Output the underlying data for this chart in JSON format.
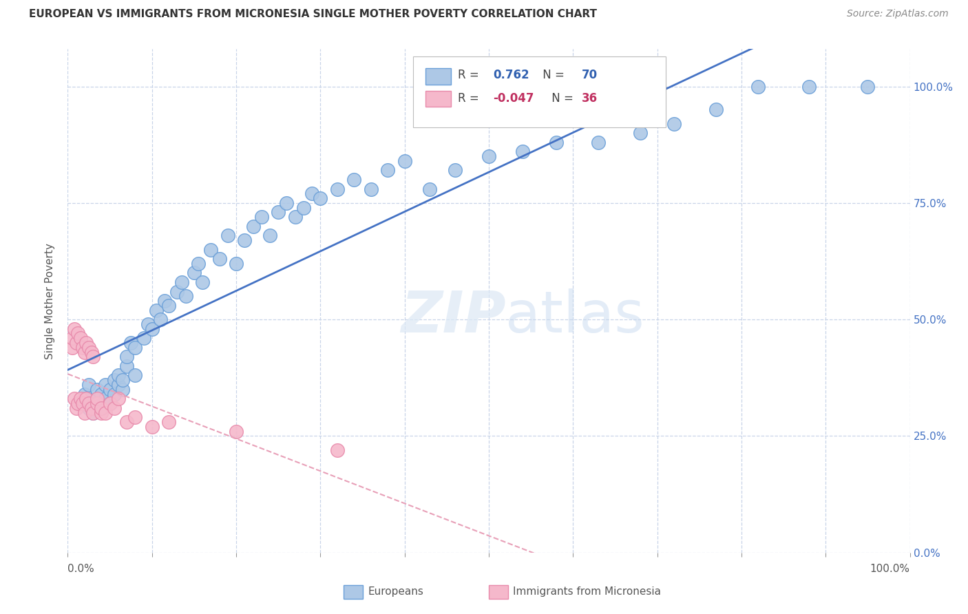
{
  "title": "EUROPEAN VS IMMIGRANTS FROM MICRONESIA SINGLE MOTHER POVERTY CORRELATION CHART",
  "source": "Source: ZipAtlas.com",
  "ylabel": "Single Mother Poverty",
  "watermark": "ZIPatlas",
  "blue_R": 0.762,
  "blue_N": 70,
  "pink_R": -0.047,
  "pink_N": 36,
  "blue_color": "#adc8e6",
  "pink_color": "#f5b8cb",
  "blue_edge_color": "#6a9fd8",
  "pink_edge_color": "#e88aab",
  "blue_line_color": "#4472c4",
  "pink_line_color": "#e8a0b8",
  "background_color": "#ffffff",
  "grid_color": "#c8d4e8",
  "blue_x": [
    1.5,
    2.0,
    2.0,
    2.5,
    2.5,
    3.0,
    3.0,
    3.5,
    3.5,
    4.0,
    4.0,
    4.5,
    4.5,
    5.0,
    5.0,
    5.5,
    5.5,
    6.0,
    6.0,
    6.5,
    6.5,
    7.0,
    7.0,
    7.5,
    8.0,
    8.0,
    9.0,
    9.5,
    10.0,
    10.5,
    11.0,
    11.5,
    12.0,
    13.0,
    13.5,
    14.0,
    15.0,
    15.5,
    16.0,
    17.0,
    18.0,
    19.0,
    20.0,
    21.0,
    22.0,
    23.0,
    24.0,
    25.0,
    26.0,
    27.0,
    28.0,
    29.0,
    30.0,
    32.0,
    34.0,
    36.0,
    38.0,
    40.0,
    43.0,
    46.0,
    50.0,
    54.0,
    58.0,
    63.0,
    68.0,
    72.0,
    77.0,
    82.0,
    88.0,
    95.0
  ],
  "blue_y": [
    32.0,
    33.0,
    34.0,
    31.0,
    36.0,
    30.0,
    32.0,
    33.0,
    35.0,
    31.0,
    34.0,
    33.0,
    36.0,
    32.0,
    35.0,
    34.0,
    37.0,
    36.0,
    38.0,
    35.0,
    37.0,
    40.0,
    42.0,
    45.0,
    38.0,
    44.0,
    46.0,
    49.0,
    48.0,
    52.0,
    50.0,
    54.0,
    53.0,
    56.0,
    58.0,
    55.0,
    60.0,
    62.0,
    58.0,
    65.0,
    63.0,
    68.0,
    62.0,
    67.0,
    70.0,
    72.0,
    68.0,
    73.0,
    75.0,
    72.0,
    74.0,
    77.0,
    76.0,
    78.0,
    80.0,
    78.0,
    82.0,
    84.0,
    78.0,
    82.0,
    85.0,
    86.0,
    88.0,
    88.0,
    90.0,
    92.0,
    95.0,
    100.0,
    100.0,
    100.0
  ],
  "pink_x": [
    0.5,
    0.5,
    0.8,
    0.8,
    1.0,
    1.0,
    1.2,
    1.2,
    1.5,
    1.5,
    1.8,
    1.8,
    2.0,
    2.0,
    2.2,
    2.2,
    2.5,
    2.5,
    2.8,
    2.8,
    3.0,
    3.0,
    3.5,
    3.5,
    4.0,
    4.0,
    4.5,
    5.0,
    5.5,
    6.0,
    7.0,
    8.0,
    10.0,
    12.0,
    20.0,
    32.0
  ],
  "pink_y": [
    44.0,
    46.0,
    33.0,
    48.0,
    31.0,
    45.0,
    32.0,
    47.0,
    33.0,
    46.0,
    32.0,
    44.0,
    30.0,
    43.0,
    33.0,
    45.0,
    32.0,
    44.0,
    31.0,
    43.0,
    30.0,
    42.0,
    32.0,
    33.0,
    30.0,
    31.0,
    30.0,
    32.0,
    31.0,
    33.0,
    28.0,
    29.0,
    27.0,
    28.0,
    26.0,
    22.0
  ],
  "ytick_vals": [
    0.0,
    25.0,
    50.0,
    75.0,
    100.0
  ],
  "ytick_labels_right": [
    "0.0%",
    "25.0%",
    "50.0%",
    "75.0%",
    "100.0%"
  ],
  "xlim": [
    0.0,
    100.0
  ],
  "ylim": [
    0.0,
    110.0
  ],
  "ymin_display": 0.0,
  "ymax_display": 100.0
}
